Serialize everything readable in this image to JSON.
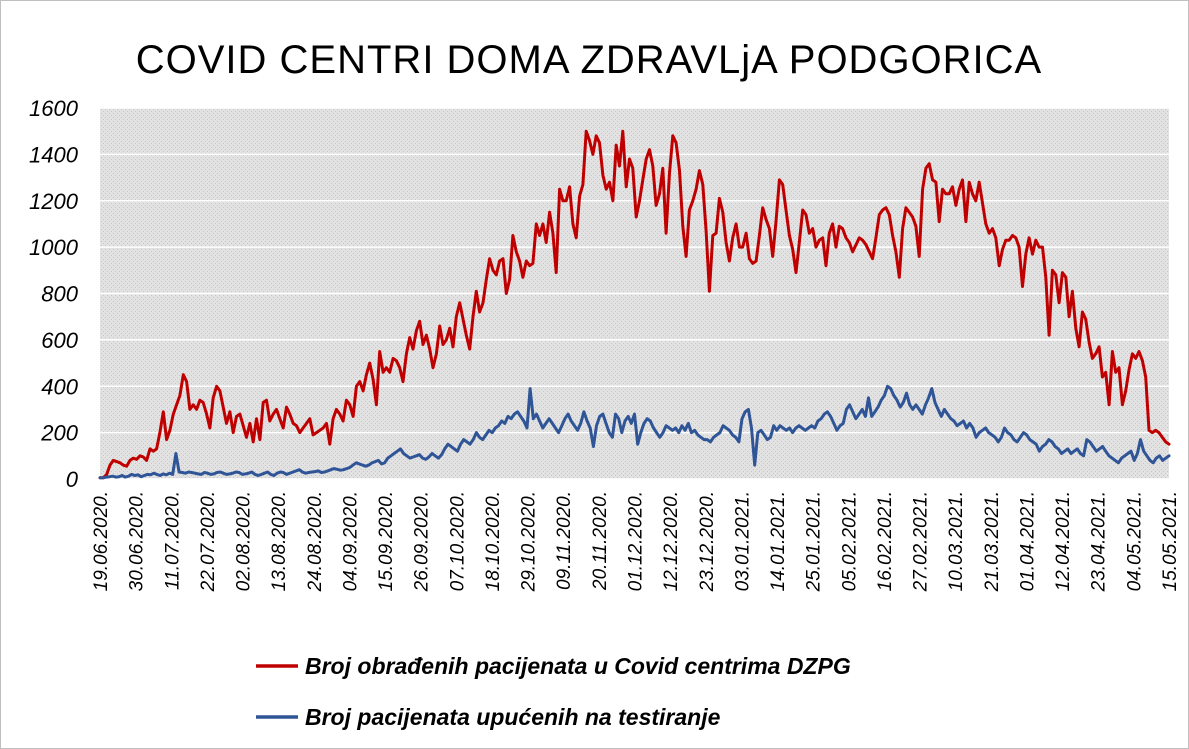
{
  "chart_data": {
    "type": "line",
    "title": "COVID  CENTRI  DOMA  ZDRAVLjA  PODGORICA",
    "xlabel": "",
    "ylabel": "",
    "ylim": [
      0,
      1600
    ],
    "yticks": [
      0,
      200,
      400,
      600,
      800,
      1000,
      1200,
      1400,
      1600
    ],
    "grid": true,
    "legend": "bottom",
    "x_tick_labels": [
      "19.06.2020.",
      "30.06.2020.",
      "11.07.2020.",
      "22.07.2020.",
      "02.08.2020.",
      "13.08.2020.",
      "24.08.2020.",
      "04.09.2020.",
      "15.09.2020.",
      "26.09.2020.",
      "07.10.2020.",
      "18.10.2020.",
      "29.10.2020.",
      "09.11.2020.",
      "20.11.2020.",
      "01.12.2020.",
      "12.12.2020.",
      "23.12.2020.",
      "03.01.2021.",
      "14.01.2021.",
      "25.01.2021.",
      "05.02.2021.",
      "16.02.2021.",
      "27.02.2021.",
      "10.03.2021.",
      "21.03.2021.",
      "01.04.2021.",
      "12.04.2021.",
      "23.04.2021.",
      "04.05.2021.",
      "15.05.2021."
    ],
    "series": [
      {
        "name": "Broj obrađenih pacijenata u Covid centrima DZPG",
        "color": "#c00000",
        "values": [
          5,
          5,
          20,
          60,
          80,
          75,
          70,
          60,
          55,
          80,
          90,
          85,
          100,
          95,
          80,
          130,
          120,
          130,
          200,
          290,
          170,
          210,
          280,
          320,
          360,
          450,
          420,
          300,
          320,
          300,
          340,
          330,
          280,
          220,
          350,
          400,
          380,
          310,
          240,
          290,
          200,
          270,
          280,
          230,
          180,
          240,
          160,
          260,
          170,
          330,
          340,
          250,
          280,
          300,
          260,
          220,
          310,
          280,
          240,
          230,
          200,
          220,
          240,
          260,
          190,
          200,
          210,
          220,
          240,
          150,
          260,
          300,
          280,
          250,
          340,
          320,
          270,
          400,
          420,
          380,
          450,
          500,
          430,
          320,
          550,
          460,
          480,
          460,
          520,
          510,
          480,
          420,
          540,
          610,
          560,
          640,
          680,
          580,
          620,
          560,
          480,
          540,
          660,
          580,
          600,
          650,
          570,
          700,
          760,
          690,
          620,
          560,
          700,
          810,
          720,
          760,
          860,
          950,
          900,
          880,
          940,
          950,
          800,
          860,
          1050,
          980,
          940,
          870,
          940,
          920,
          930,
          1100,
          1050,
          1100,
          1020,
          1150,
          1060,
          890,
          1250,
          1200,
          1200,
          1260,
          1100,
          1040,
          1220,
          1270,
          1500,
          1460,
          1400,
          1480,
          1450,
          1310,
          1250,
          1280,
          1200,
          1440,
          1350,
          1500,
          1260,
          1380,
          1340,
          1130,
          1200,
          1290,
          1380,
          1420,
          1350,
          1180,
          1230,
          1340,
          1060,
          1320,
          1480,
          1450,
          1330,
          1090,
          960,
          1160,
          1200,
          1250,
          1330,
          1270,
          1070,
          810,
          1050,
          1060,
          1210,
          1150,
          1020,
          940,
          1040,
          1100,
          1000,
          1000,
          1060,
          950,
          930,
          940,
          1050,
          1170,
          1120,
          1080,
          960,
          1110,
          1290,
          1270,
          1160,
          1050,
          990,
          890,
          1020,
          1160,
          1140,
          1060,
          1080,
          1000,
          1030,
          1040,
          920,
          1060,
          1100,
          1000,
          1090,
          1080,
          1040,
          1020,
          980,
          1010,
          1040,
          1030,
          1010,
          980,
          950,
          1040,
          1140,
          1160,
          1170,
          1140,
          1050,
          980,
          870,
          1080,
          1170,
          1150,
          1130,
          1090,
          960,
          1250,
          1340,
          1360,
          1290,
          1280,
          1110,
          1250,
          1230,
          1230,
          1260,
          1180,
          1250,
          1290,
          1110,
          1280,
          1230,
          1200,
          1280,
          1190,
          1100,
          1060,
          1080,
          1040,
          920,
          990,
          1030,
          1030,
          1050,
          1040,
          1000,
          830,
          970,
          1040,
          970,
          1030,
          1000,
          1000,
          870,
          620,
          900,
          880,
          760,
          890,
          870,
          700,
          810,
          650,
          570,
          720,
          690,
          590,
          520,
          540,
          570,
          440,
          460,
          320,
          550,
          460,
          480,
          320,
          380,
          470,
          540,
          520,
          550,
          510,
          440,
          210,
          200,
          210,
          200,
          180,
          160,
          150
        ],
        "x_index_range": [
          0,
          330
        ]
      },
      {
        "name": "Broj pacijenata upućenih na testiranje",
        "color": "#2f5597",
        "values": [
          5,
          5,
          8,
          10,
          12,
          8,
          10,
          15,
          8,
          12,
          20,
          15,
          18,
          10,
          15,
          20,
          18,
          25,
          20,
          15,
          22,
          18,
          25,
          20,
          110,
          30,
          28,
          25,
          30,
          28,
          25,
          22,
          20,
          28,
          25,
          20,
          22,
          28,
          30,
          25,
          20,
          22,
          25,
          30,
          28,
          20,
          22,
          25,
          30,
          20,
          15,
          20,
          25,
          30,
          20,
          15,
          25,
          30,
          28,
          20,
          25,
          30,
          35,
          40,
          30,
          25,
          28,
          30,
          32,
          35,
          28,
          30,
          35,
          40,
          45,
          42,
          38,
          40,
          45,
          50,
          60,
          70,
          65,
          60,
          55,
          60,
          70,
          75,
          80,
          65,
          70,
          90,
          100,
          110,
          120,
          130,
          110,
          100,
          90,
          95,
          100,
          105,
          90,
          85,
          95,
          110,
          100,
          90,
          105,
          130,
          150,
          140,
          130,
          120,
          150,
          170,
          160,
          150,
          170,
          200,
          180,
          170,
          190,
          210,
          200,
          220,
          230,
          250,
          240,
          270,
          260,
          280,
          290,
          270,
          250,
          220,
          390,
          260,
          280,
          250,
          220,
          240,
          260,
          240,
          220,
          200,
          230,
          260,
          280,
          250,
          230,
          210,
          240,
          290,
          250,
          220,
          140,
          230,
          270,
          280,
          240,
          200,
          180,
          280,
          260,
          200,
          250,
          270,
          240,
          280,
          150,
          200,
          240,
          260,
          250,
          220,
          200,
          180,
          200,
          230,
          220,
          210,
          220,
          200,
          230,
          210,
          240,
          200,
          210,
          190,
          180,
          170,
          170,
          160,
          180,
          190,
          200,
          230,
          220,
          210,
          190,
          180,
          160,
          260,
          290,
          300,
          220,
          60,
          200,
          210,
          190,
          170,
          180,
          230,
          210,
          230,
          220,
          210,
          220,
          200,
          220,
          230,
          220,
          210,
          220,
          230,
          220,
          250,
          260,
          280,
          290,
          270,
          240,
          210,
          230,
          240,
          300,
          320,
          290,
          260,
          280,
          300,
          270,
          350,
          270,
          290,
          310,
          340,
          360,
          400,
          390,
          360,
          340,
          310,
          330,
          370,
          320,
          300,
          320,
          300,
          280,
          320,
          350,
          390,
          330,
          300,
          270,
          300,
          280,
          260,
          250,
          230,
          240,
          250,
          220,
          240,
          220,
          180,
          200,
          210,
          220,
          200,
          190,
          180,
          160,
          180,
          220,
          200,
          190,
          170,
          160,
          180,
          200,
          190,
          170,
          160,
          150,
          120,
          140,
          150,
          170,
          160,
          140,
          130,
          110,
          120,
          130,
          110,
          120,
          130,
          110,
          100,
          170,
          160,
          140,
          120,
          130,
          140,
          120,
          100,
          90,
          80,
          70,
          90,
          100,
          110,
          120,
          80,
          110,
          170,
          120,
          100,
          80,
          70,
          90,
          100,
          80,
          90,
          100
        ],
        "x_index_range": [
          0,
          330
        ]
      }
    ]
  }
}
